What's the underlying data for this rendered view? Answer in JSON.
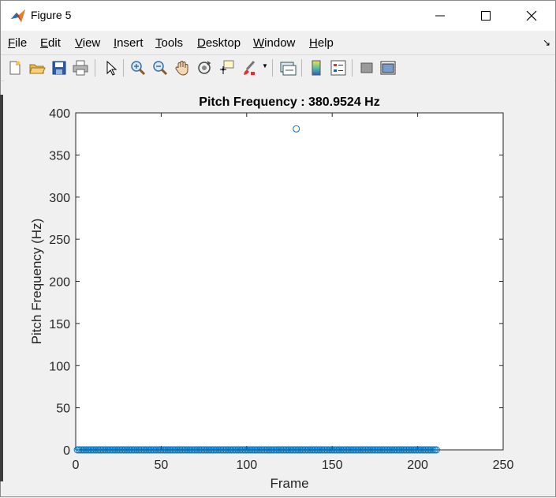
{
  "window": {
    "title": "Figure 5",
    "icon": "matlab-icon",
    "controls": [
      "minimize-icon",
      "maximize-icon",
      "close-icon"
    ]
  },
  "menubar": {
    "items": [
      {
        "label": "File",
        "mnemonic": "F"
      },
      {
        "label": "Edit",
        "mnemonic": "E"
      },
      {
        "label": "View",
        "mnemonic": "V"
      },
      {
        "label": "Insert",
        "mnemonic": "I"
      },
      {
        "label": "Tools",
        "mnemonic": "T"
      },
      {
        "label": "Desktop",
        "mnemonic": "D"
      },
      {
        "label": "Window",
        "mnemonic": "W"
      },
      {
        "label": "Help",
        "mnemonic": "H"
      }
    ]
  },
  "toolbar": {
    "buttons": [
      "new-figure-icon",
      "open-file-icon",
      "save-icon",
      "print-icon",
      "select-arrow-icon",
      "zoom-in-icon",
      "zoom-out-icon",
      "pan-hand-icon",
      "rotate-3d-icon",
      "data-cursor-icon",
      "brush-icon",
      "link-plot-icon",
      "colorbar-icon",
      "legend-icon",
      "hide-plot-tools-icon",
      "show-plot-tools-icon"
    ]
  },
  "colors": {
    "marker": "#0072bd",
    "axes": "#262626",
    "background": "#f0f0f0"
  },
  "chart_data": {
    "type": "scatter",
    "title": "Pitch Frequency : 380.9524 Hz",
    "xlabel": "Frame",
    "ylabel": "Pitch Frequency (Hz)",
    "xlim": [
      0,
      250
    ],
    "ylim": [
      0,
      400
    ],
    "xticks": [
      "0",
      "50",
      "100",
      "150",
      "200",
      "250"
    ],
    "yticks": [
      "0",
      "50",
      "100",
      "150",
      "200",
      "250",
      "300",
      "350",
      "400"
    ],
    "grid": false,
    "marker": "circle-open",
    "series": [
      {
        "zeros_from": 1,
        "zeros_to": 211,
        "points": [
          {
            "x": 129,
            "y": 381
          }
        ]
      }
    ]
  }
}
